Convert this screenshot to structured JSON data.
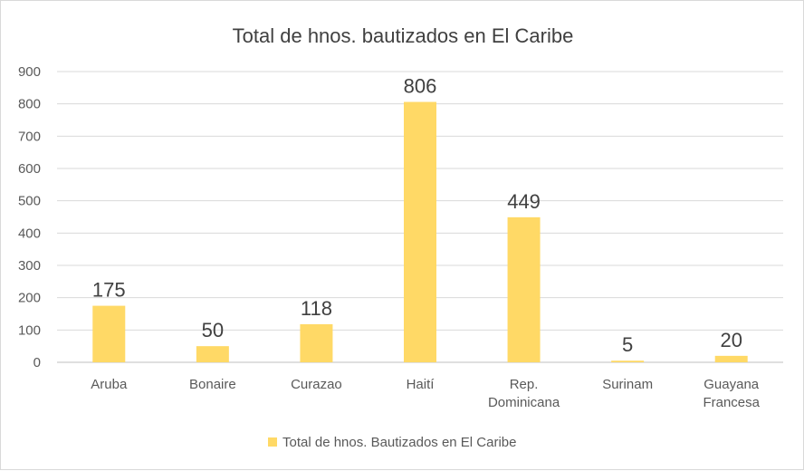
{
  "chart_data": {
    "type": "bar",
    "title": "Total de hnos. bautizados en El Caribe",
    "categories": [
      [
        "Aruba"
      ],
      [
        "Bonaire"
      ],
      [
        "Curazao"
      ],
      [
        "Haití"
      ],
      [
        "Rep.",
        "Dominicana"
      ],
      [
        "Surinam"
      ],
      [
        "Guayana",
        "Francesa"
      ]
    ],
    "series": [
      {
        "name": "Total de hnos. Bautizados en El Caribe",
        "values": [
          175,
          50,
          118,
          806,
          449,
          5,
          20
        ],
        "color": "#ffd966"
      }
    ],
    "data_labels": [
      "175",
      "50",
      "118",
      "806",
      "449",
      "5",
      "20"
    ],
    "ylim": [
      0,
      900
    ],
    "yticks": [
      "0",
      "100",
      "200",
      "300",
      "400",
      "500",
      "600",
      "700",
      "800",
      "900"
    ],
    "grid": true,
    "legend": "bottom",
    "gridline_color": "#d9d9d9",
    "axis_color": "#bfbfbf"
  }
}
